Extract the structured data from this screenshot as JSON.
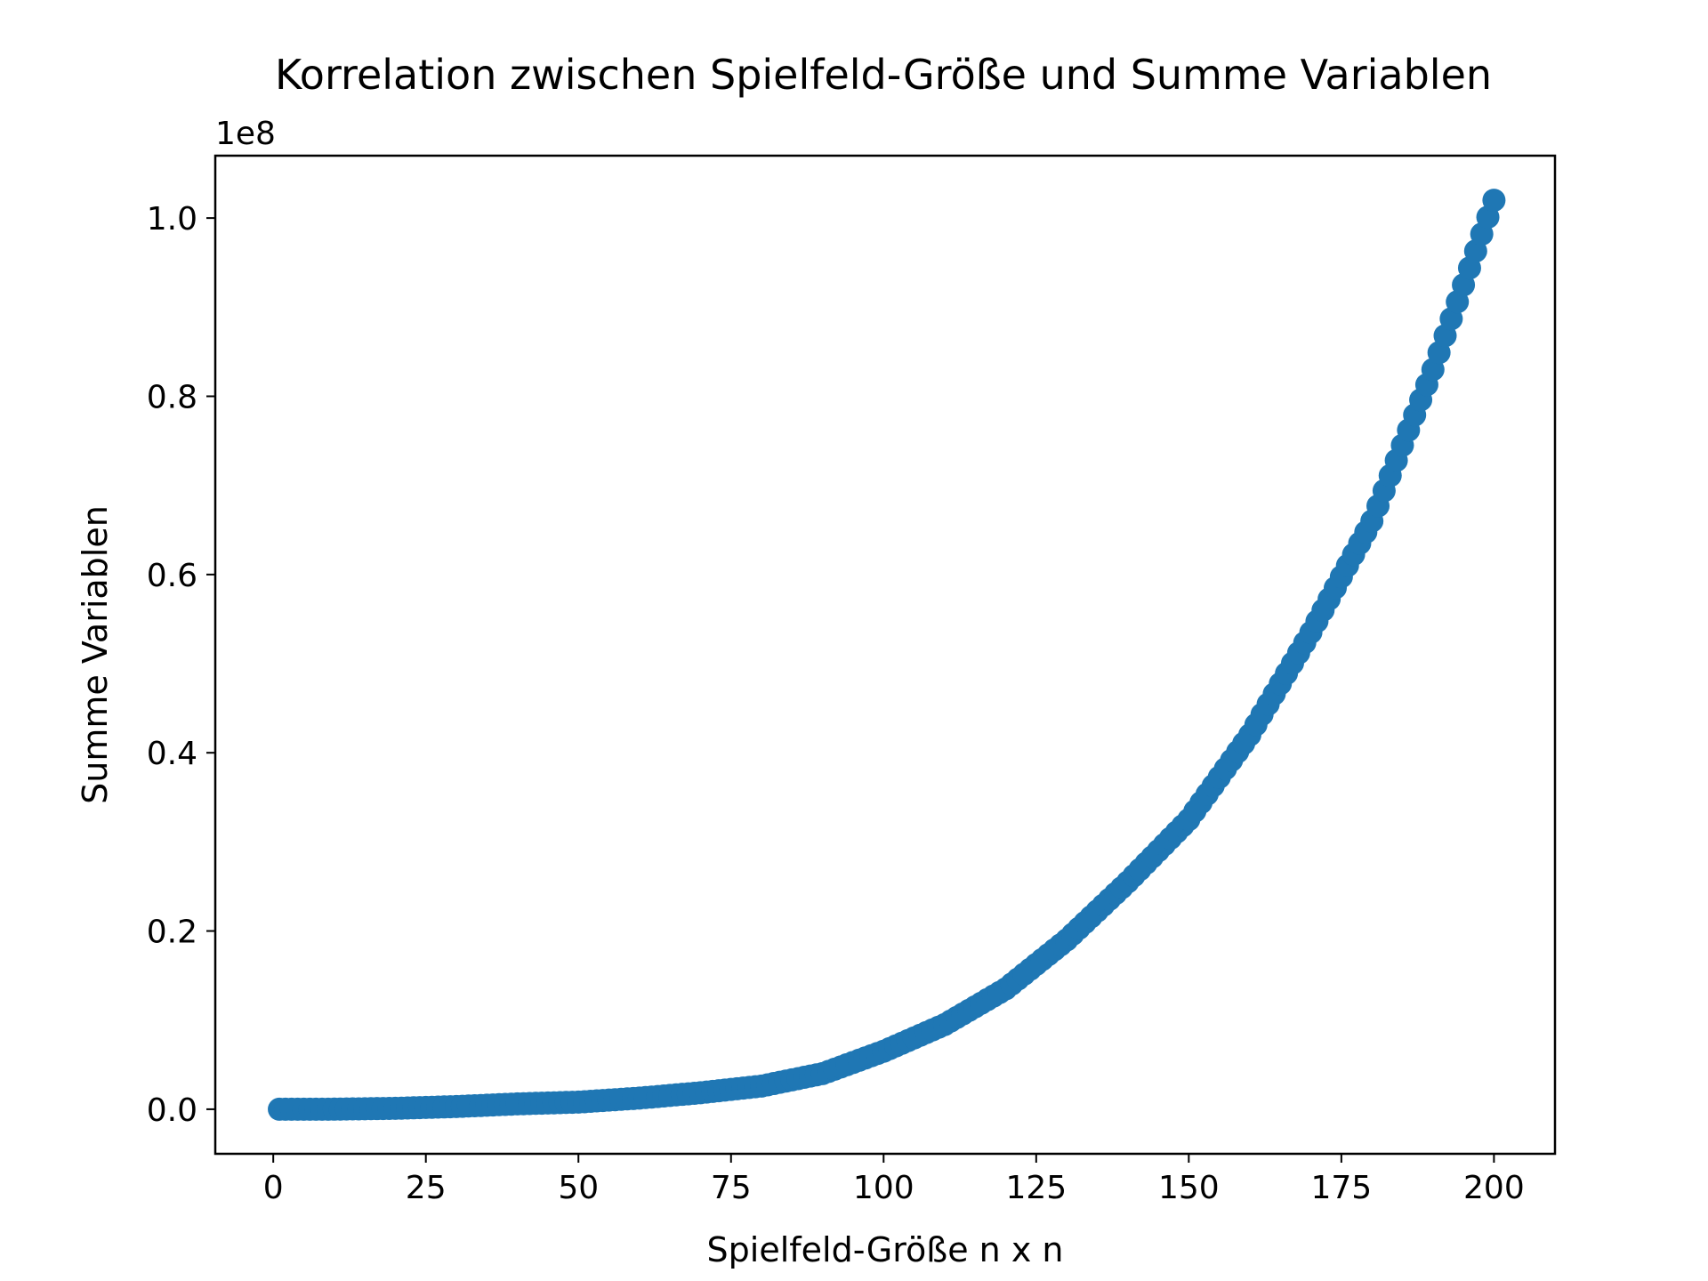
{
  "chart_data": {
    "type": "scatter",
    "title": "Korrelation zwischen Spielfeld-Größe und Summe Variablen",
    "xlabel": "Spielfeld-Größe n x n",
    "ylabel": "Summe Variablen",
    "y_offset_label": "1e8",
    "xlim": [
      -9.5,
      210
    ],
    "ylim": [
      -0.05,
      1.07
    ],
    "y_scale_factor": 100000000,
    "x_ticks": [
      0,
      25,
      50,
      75,
      100,
      125,
      150,
      175,
      200
    ],
    "x_tick_labels": [
      "0",
      "25",
      "50",
      "75",
      "100",
      "125",
      "150",
      "175",
      "200"
    ],
    "y_ticks": [
      0.0,
      0.2,
      0.4,
      0.6,
      0.8,
      1.0
    ],
    "y_tick_labels": [
      "0.0",
      "0.2",
      "0.4",
      "0.6",
      "0.8",
      "1.0"
    ],
    "series": [
      {
        "name": "Summe Variablen",
        "color": "#1f77b4",
        "x": [
          1,
          10,
          20,
          30,
          40,
          50,
          60,
          70,
          80,
          90,
          100,
          110,
          120,
          130,
          140,
          150,
          160,
          170,
          180,
          190,
          200
        ],
        "y": [
          0.0,
          0.0001,
          0.001,
          0.003,
          0.006,
          0.008,
          0.0125,
          0.0185,
          0.026,
          0.04,
          0.065,
          0.095,
          0.135,
          0.19,
          0.255,
          0.325,
          0.42,
          0.535,
          0.66,
          0.83,
          1.02
        ]
      }
    ]
  }
}
